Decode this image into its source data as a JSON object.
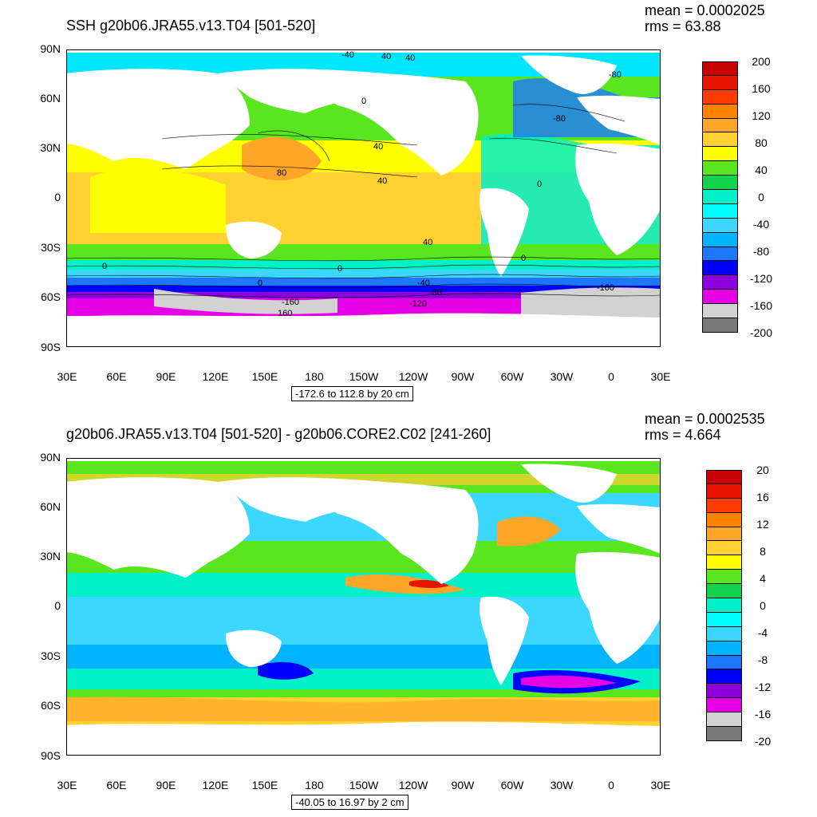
{
  "top": {
    "title": "SSH g20b06.JRA55.v13.T04 [501-520]",
    "mean": "mean = 0.0002025",
    "rms": "rms = 63.88",
    "range_note": "-172.6 to 112.8 by 20 cm",
    "colorbar_labels": [
      "200",
      "160",
      "120",
      "80",
      "40",
      "0",
      "-40",
      "-80",
      "-120",
      "-160",
      "-200"
    ],
    "colorbar_colors": [
      "#c80000",
      "#e61400",
      "#ff3c00",
      "#ff8200",
      "#ffa528",
      "#ffd232",
      "#ffff00",
      "#5ae61e",
      "#14d24b",
      "#00f0c8",
      "#00ffff",
      "#3cd7ff",
      "#00b4ff",
      "#1e78ff",
      "#0000ff",
      "#8c00dc",
      "#e600e6",
      "#d2d2d2",
      "#787878"
    ],
    "contour_labels": [
      "-40",
      "40",
      "40",
      "0",
      "-80",
      "-80",
      "40",
      "80",
      "40",
      "0",
      "40",
      "0",
      "0",
      "0",
      "-40",
      "-80",
      "-120",
      "-160",
      "160",
      "-160",
      "0"
    ]
  },
  "bottom": {
    "title": "g20b06.JRA55.v13.T04 [501-520] - g20b06.CORE2.C02 [241-260]",
    "mean": "mean = 0.0002535",
    "rms": "rms = 4.664",
    "range_note": "-40.05 to 16.97 by 2 cm",
    "colorbar_labels": [
      "20",
      "16",
      "12",
      "8",
      "4",
      "0",
      "-4",
      "-8",
      "-12",
      "-16",
      "-20"
    ],
    "colorbar_colors": [
      "#c80000",
      "#e61400",
      "#ff3c00",
      "#ff8200",
      "#ffa528",
      "#ffd232",
      "#ffff00",
      "#5ae61e",
      "#14d24b",
      "#00f0c8",
      "#00ffff",
      "#3cd7ff",
      "#00b4ff",
      "#1e78ff",
      "#0000ff",
      "#8c00dc",
      "#e600e6",
      "#d2d2d2",
      "#787878"
    ]
  },
  "axes": {
    "lat_labels": [
      "90N",
      "60N",
      "30N",
      "0",
      "30S",
      "60S",
      "90S"
    ],
    "lon_labels": [
      "30E",
      "60E",
      "90E",
      "120E",
      "150E",
      "180",
      "150W",
      "120W",
      "90W",
      "60W",
      "30W",
      "0",
      "30E"
    ]
  }
}
